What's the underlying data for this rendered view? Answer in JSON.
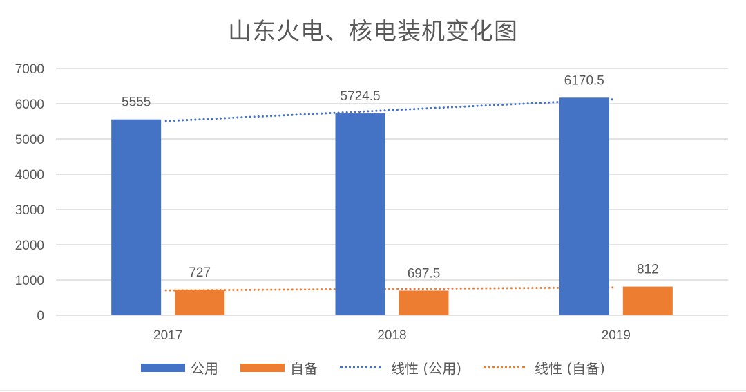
{
  "chart_data": {
    "type": "bar",
    "title": "山东火电、核电装机变化图",
    "xlabel": "",
    "ylabel": "",
    "categories": [
      "2017",
      "2018",
      "2019"
    ],
    "series": [
      {
        "name": "公用",
        "values": [
          5555,
          5724.5,
          6170.5
        ],
        "color": "#4472C4",
        "labels": [
          "5555",
          "5724.5",
          "6170.5"
        ]
      },
      {
        "name": "自备",
        "values": [
          727,
          697.5,
          812
        ],
        "color": "#ED7D31",
        "labels": [
          "727",
          "697.5",
          "812"
        ]
      }
    ],
    "trendlines": [
      {
        "name": "线性 (公用)",
        "type": "linear",
        "series": "公用",
        "color": "#4472C4",
        "style": "dotted"
      },
      {
        "name": "线性 (自备)",
        "type": "linear",
        "series": "自备",
        "color": "#ED7D31",
        "style": "dotted"
      }
    ],
    "yticks": [
      "0",
      "1000",
      "2000",
      "3000",
      "4000",
      "5000",
      "6000",
      "7000"
    ],
    "ylim": [
      0,
      7000
    ],
    "grid": true,
    "legend_position": "bottom"
  },
  "legend": {
    "items": [
      {
        "label": "公用",
        "color": "#4472C4",
        "kind": "bar"
      },
      {
        "label": "自备",
        "color": "#ED7D31",
        "kind": "bar"
      },
      {
        "label": "线性 (公用)",
        "color": "#4472C4",
        "kind": "dotted-line"
      },
      {
        "label": "线性 (自备)",
        "color": "#ED7D31",
        "kind": "dotted-line"
      }
    ]
  }
}
